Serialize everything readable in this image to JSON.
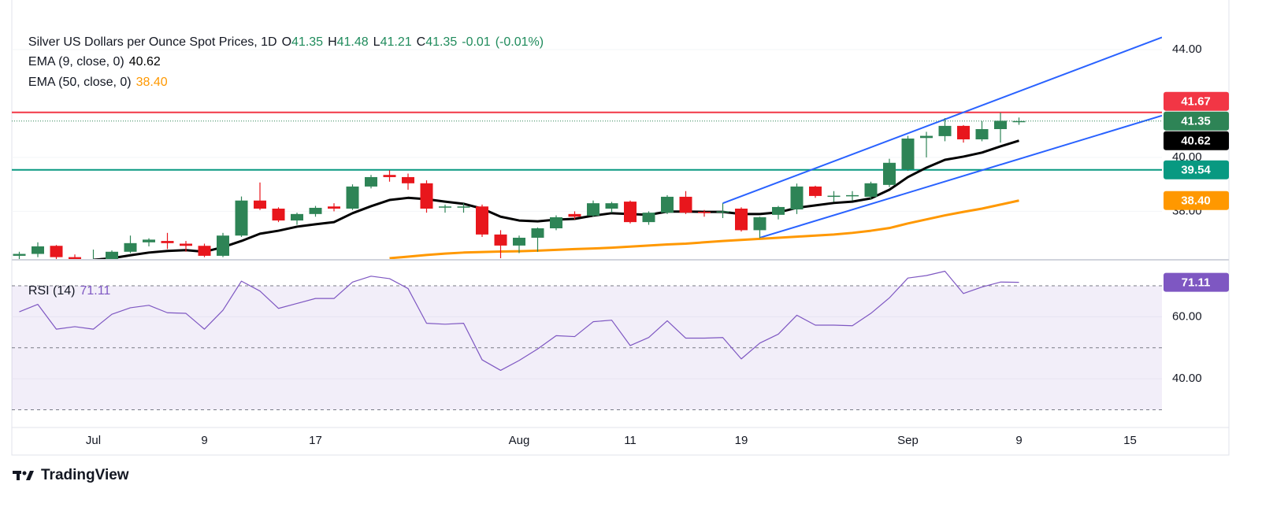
{
  "chart_data": [
    {
      "type": "candlestick",
      "title": "Silver US Dollars per Ounce Spot Prices, 1D",
      "ohlc_labels": [
        "O",
        "H",
        "L",
        "C"
      ],
      "change": "-0.01",
      "change_percent": "(-0.01%)",
      "categories": [
        null,
        null,
        null,
        null,
        "Jul",
        null,
        null,
        null,
        null,
        null,
        "9",
        null,
        null,
        null,
        null,
        null,
        "17",
        null,
        null,
        null,
        null,
        null,
        null,
        null,
        null,
        null,
        null,
        "Aug",
        null,
        null,
        null,
        null,
        null,
        "11",
        null,
        null,
        null,
        null,
        null,
        "19",
        null,
        null,
        null,
        null,
        null,
        null,
        null,
        null,
        "Sep",
        null,
        null,
        null,
        null,
        null,
        "9",
        null,
        null,
        null,
        null,
        null,
        "15",
        null
      ],
      "open": [
        36.35,
        36.42,
        36.72,
        36.3,
        36.1,
        36.2,
        36.5,
        36.85,
        36.9,
        36.8,
        36.72,
        36.35,
        37.1,
        38.4,
        38.1,
        37.66,
        37.9,
        38.18,
        38.1,
        38.92,
        39.35,
        39.27,
        39.04,
        38.15,
        38.16,
        38.18,
        37.14,
        36.73,
        37.02,
        37.37,
        37.9,
        37.84,
        38.1,
        38.36,
        37.6,
        37.95,
        38.54,
        37.98,
        37.98,
        38.1,
        37.3,
        37.87,
        38.07,
        38.92,
        38.56,
        38.57,
        38.54,
        38.98,
        39.56,
        40.72,
        40.79,
        41.17,
        40.67,
        41.05,
        41.35,
        null,
        null,
        null,
        null,
        null,
        null,
        null
      ],
      "high": [
        36.5,
        36.85,
        36.75,
        36.4,
        36.58,
        36.55,
        37.1,
        37.0,
        37.2,
        36.9,
        36.8,
        37.2,
        38.55,
        39.07,
        38.15,
        37.95,
        38.2,
        38.3,
        39.0,
        39.35,
        39.52,
        39.4,
        39.15,
        38.25,
        38.3,
        38.25,
        37.3,
        37.1,
        37.4,
        37.85,
        38.0,
        38.4,
        38.35,
        38.4,
        38.0,
        38.6,
        38.75,
        38.05,
        38.3,
        38.15,
        37.8,
        38.2,
        39.03,
        38.95,
        38.75,
        38.75,
        39.1,
        39.95,
        40.8,
        40.95,
        41.46,
        41.2,
        41.35,
        41.66,
        41.48,
        null,
        null,
        null,
        null,
        null,
        null,
        null
      ],
      "low": [
        36.2,
        36.3,
        36.2,
        36.0,
        35.9,
        36.1,
        36.45,
        36.7,
        36.6,
        36.5,
        36.3,
        36.3,
        37.05,
        38.05,
        37.6,
        37.5,
        37.8,
        38.0,
        38.05,
        38.85,
        39.1,
        38.8,
        37.95,
        37.95,
        37.95,
        37.05,
        36.26,
        36.45,
        36.5,
        37.3,
        37.7,
        37.8,
        37.95,
        37.55,
        37.5,
        37.9,
        37.9,
        37.8,
        37.75,
        37.25,
        37.0,
        37.7,
        37.9,
        38.5,
        38.35,
        38.4,
        38.45,
        38.9,
        39.5,
        40.0,
        40.6,
        40.55,
        40.6,
        40.55,
        41.21,
        null,
        null,
        null,
        null,
        null,
        null,
        null
      ],
      "close": [
        36.42,
        36.7,
        36.3,
        36.1,
        36.2,
        36.5,
        36.82,
        36.95,
        36.82,
        36.72,
        36.35,
        37.1,
        38.4,
        38.1,
        37.66,
        37.9,
        38.13,
        38.1,
        38.92,
        39.27,
        39.27,
        39.04,
        38.1,
        38.18,
        38.18,
        37.14,
        36.73,
        37.02,
        37.37,
        37.78,
        37.8,
        38.3,
        38.3,
        37.6,
        37.95,
        38.54,
        37.95,
        37.95,
        38.0,
        37.3,
        37.78,
        38.16,
        38.92,
        38.57,
        38.58,
        38.6,
        39.04,
        39.8,
        40.7,
        40.8,
        41.17,
        40.67,
        41.05,
        41.36,
        41.35,
        null,
        null,
        null,
        null,
        null,
        null,
        null
      ],
      "up_color": "#2e8456",
      "down_color": "#e8161c",
      "ylim": [
        36.26,
        45.84
      ],
      "yticks": [
        {
          "value": 44,
          "label": "44.00"
        },
        {
          "value": 40,
          "label": "40.00"
        },
        {
          "value": 38,
          "label": "38.00"
        }
      ],
      "overlays": [
        {
          "name": "EMA (9, close, 0)",
          "color": "#000000",
          "values": [
            null,
            null,
            null,
            null,
            36.2,
            36.26,
            36.37,
            36.47,
            36.53,
            36.56,
            36.5,
            36.67,
            36.9,
            37.17,
            37.28,
            37.43,
            37.52,
            37.6,
            37.93,
            38.19,
            38.42,
            38.5,
            38.45,
            38.36,
            38.28,
            38.1,
            37.8,
            37.66,
            37.63,
            37.69,
            37.72,
            37.84,
            37.93,
            37.9,
            37.87,
            37.99,
            37.99,
            37.98,
            37.98,
            37.9,
            37.9,
            37.96,
            38.13,
            38.22,
            38.31,
            38.36,
            38.48,
            38.8,
            39.27,
            39.62,
            39.91,
            40.03,
            40.18,
            40.41,
            40.62,
            null,
            null,
            null,
            null,
            null,
            null,
            null
          ]
        },
        {
          "name": "EMA (50, close, 0)",
          "color": "#ff9800",
          "values": [
            null,
            null,
            null,
            null,
            null,
            null,
            null,
            null,
            null,
            null,
            null,
            null,
            null,
            null,
            null,
            null,
            null,
            null,
            null,
            null,
            36.26,
            36.32,
            36.38,
            36.43,
            36.47,
            36.49,
            36.51,
            36.52,
            36.54,
            36.57,
            36.6,
            36.62,
            36.65,
            36.69,
            36.73,
            36.77,
            36.8,
            36.85,
            36.9,
            36.94,
            36.98,
            37.02,
            37.06,
            37.1,
            37.14,
            37.2,
            37.28,
            37.38,
            37.55,
            37.7,
            37.85,
            37.98,
            38.1,
            38.25,
            38.4,
            null,
            null,
            null,
            null,
            null,
            null,
            null
          ],
          "value_labels": [
            null,
            null,
            null,
            null,
            null,
            null,
            null,
            null,
            null,
            null,
            null,
            null,
            null,
            null,
            null,
            null,
            null,
            null,
            null,
            null,
            null,
            null,
            null,
            null,
            null,
            null,
            null,
            null,
            null,
            null,
            null,
            null,
            null,
            null,
            null,
            null,
            null,
            null,
            null,
            null,
            null,
            null,
            null,
            null,
            null,
            null,
            null,
            null,
            null,
            null,
            null,
            null,
            null,
            null,
            "38.40",
            null,
            null,
            null,
            null,
            null,
            null,
            null
          ]
        }
      ],
      "hlines": [
        {
          "value": 41.67,
          "color": "#f23645"
        },
        {
          "value": 39.54,
          "color": "#089981"
        }
      ],
      "trendlines": [
        {
          "from": [
            38,
            38.3
          ],
          "to": [
            54,
            42.45
          ],
          "color": "#2962ff"
        },
        {
          "from": [
            40,
            37.02
          ],
          "to": [
            54,
            39.94
          ],
          "color": "#2962ff"
        }
      ]
    },
    {
      "type": "line",
      "name": "RSI (14)",
      "color": "#7e57c2",
      "values": [
        61.6,
        64,
        56,
        56.8,
        56,
        60.8,
        62.9,
        63.7,
        61.3,
        61.1,
        56,
        62.1,
        71.5,
        68.3,
        62.7,
        64.3,
        65.9,
        65.9,
        71.2,
        73.1,
        72.3,
        69.1,
        57.9,
        57.6,
        57.9,
        46.1,
        42.7,
        45.9,
        49.6,
        53.9,
        53.6,
        58.4,
        58.9,
        50.7,
        53.3,
        58.7,
        53.1,
        53.1,
        53.3,
        46.4,
        51.5,
        54.4,
        60.5,
        57.3,
        57.3,
        57.1,
        61.1,
        66.1,
        72.5,
        73.3,
        74.7,
        67.5,
        69.6,
        71.2,
        71.11,
        null,
        null,
        null,
        null,
        null,
        null,
        null
      ],
      "ylim": [
        24.27,
        78.13
      ],
      "yticks": [
        {
          "value": 60,
          "label": "60.00"
        },
        {
          "value": 40,
          "label": "40.00"
        }
      ],
      "band": [
        30,
        70
      ],
      "midline": 50
    }
  ],
  "branding": "TradingView"
}
